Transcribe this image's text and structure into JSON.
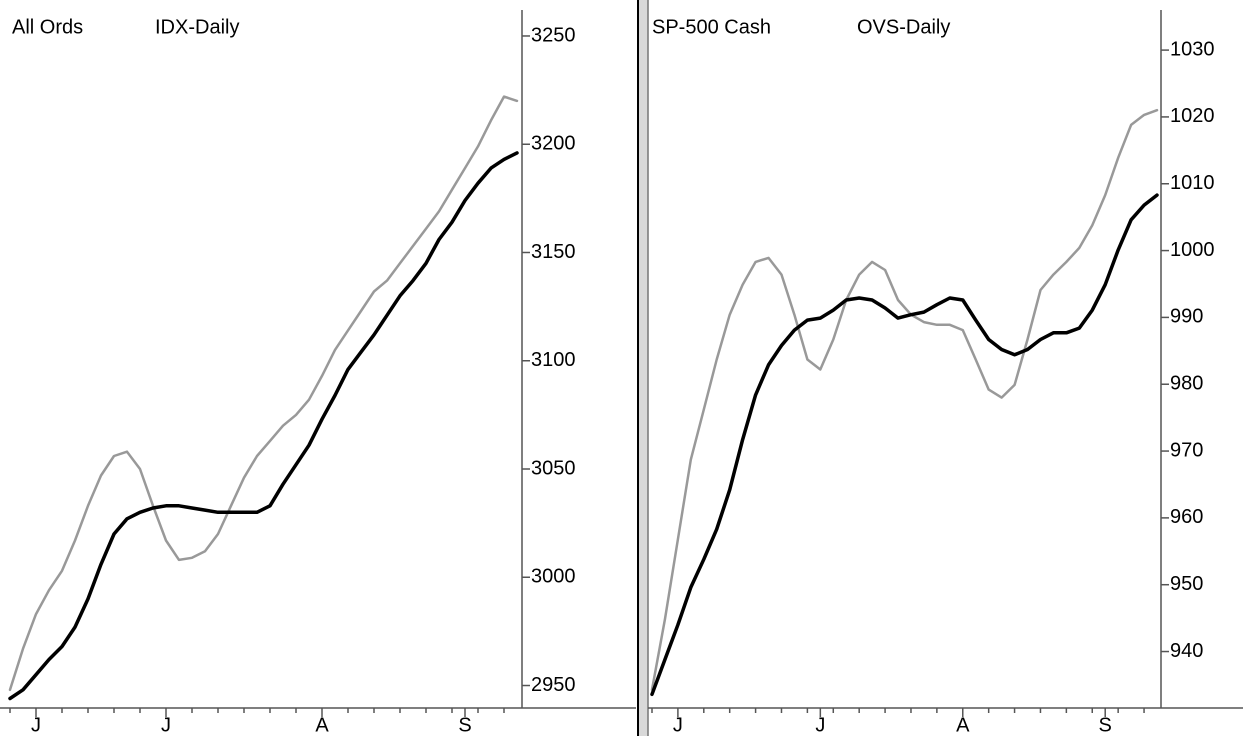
{
  "chart_data": [
    {
      "type": "line",
      "title": "All Ords",
      "subtitle": "IDX-Daily",
      "categories": [
        null,
        null,
        "J",
        null,
        null,
        null,
        null,
        null,
        null,
        null,
        null,
        null,
        "J",
        null,
        null,
        null,
        null,
        null,
        null,
        null,
        null,
        null,
        null,
        null,
        "A",
        null,
        null,
        null,
        null,
        null,
        null,
        null,
        null,
        null,
        null,
        "S",
        null,
        null,
        null,
        null
      ],
      "series": [
        {
          "color": "#999999",
          "values": [
            2948,
            2967,
            2983,
            2994,
            3003,
            3017,
            3033,
            3047,
            3056,
            3058,
            3050,
            3033,
            3017,
            3008,
            3009,
            3012,
            3020,
            3033,
            3046,
            3056,
            3063,
            3070,
            3075,
            3082,
            3093,
            3105,
            3114,
            3123,
            3132,
            3137,
            3145,
            3153,
            3161,
            3169,
            3179,
            3189,
            3199,
            3211,
            3222,
            3220
          ]
        },
        {
          "color": "#000000",
          "values": [
            2944,
            2948,
            2955,
            2962,
            2968,
            2977,
            2990,
            3006,
            3020,
            3027,
            3030,
            3032,
            3033,
            3033,
            3032,
            3031,
            3030,
            3030,
            3030,
            3030,
            3033,
            3043,
            3052,
            3061,
            3073,
            3084,
            3096,
            3104,
            3112,
            3121,
            3130,
            3137,
            3145,
            3156,
            3164,
            3174,
            3182,
            3189,
            3193,
            3196
          ]
        }
      ],
      "ylim": [
        2941,
        3262
      ],
      "yticks": [
        2950,
        3000,
        3050,
        3100,
        3150,
        3200,
        3250
      ]
    },
    {
      "type": "line",
      "title": "SP-500 Cash",
      "subtitle": "OVS-Daily",
      "categories": [
        null,
        null,
        "J",
        null,
        null,
        null,
        null,
        null,
        null,
        null,
        null,
        null,
        null,
        "J",
        null,
        null,
        null,
        null,
        null,
        null,
        null,
        null,
        null,
        null,
        "A",
        null,
        null,
        null,
        null,
        null,
        null,
        null,
        null,
        null,
        null,
        "S",
        null,
        null,
        null,
        null
      ],
      "series": [
        {
          "color": "#999999",
          "values": [
            934.3,
            944.8,
            956.8,
            968.7,
            976.2,
            983.7,
            990.4,
            994.9,
            998.3,
            998.9,
            996.4,
            990.4,
            983.7,
            982.2,
            986.7,
            992.6,
            996.4,
            998.3,
            997.1,
            992.6,
            990.4,
            989.3,
            988.9,
            988.9,
            988.1,
            983.7,
            979.2,
            978.0,
            979.9,
            986.7,
            994.1,
            996.4,
            998.3,
            1000.4,
            1003.8,
            1008.3,
            1013.9,
            1018.8,
            1020.3,
            1021.0
          ]
        },
        {
          "color": "#000000",
          "values": [
            933.6,
            938.8,
            944.0,
            949.6,
            953.8,
            958.3,
            964.2,
            971.7,
            978.4,
            982.9,
            985.8,
            988.1,
            989.6,
            989.9,
            991.1,
            992.6,
            992.9,
            992.6,
            991.4,
            989.9,
            990.4,
            990.8,
            991.9,
            992.9,
            992.6,
            989.6,
            986.7,
            985.2,
            984.4,
            985.2,
            986.7,
            987.7,
            987.7,
            988.4,
            991.1,
            994.9,
            1000.1,
            1004.6,
            1006.8,
            1008.3
          ]
        }
      ],
      "ylim": [
        932,
        1036
      ],
      "yticks": [
        940,
        950,
        960,
        970,
        980,
        990,
        1000,
        1010,
        1020,
        1030
      ]
    }
  ]
}
